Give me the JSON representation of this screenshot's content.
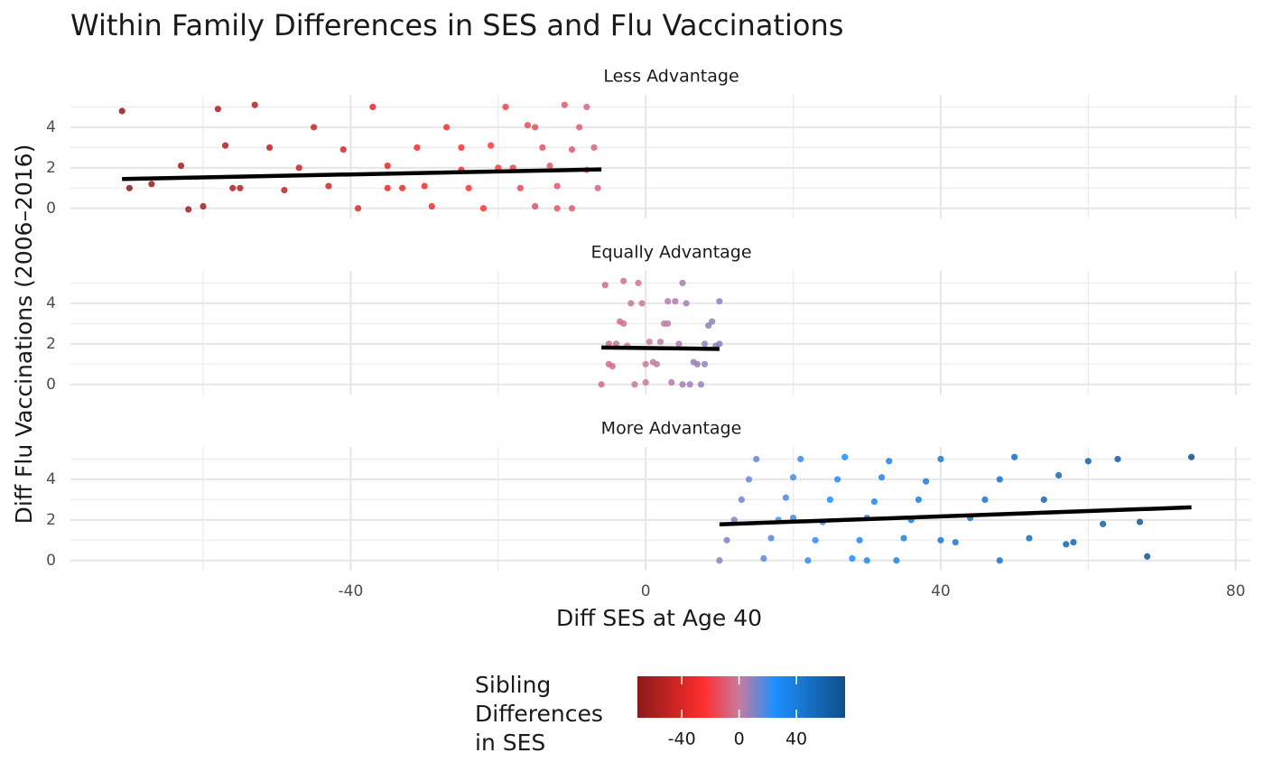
{
  "chart_data": {
    "type": "scatter",
    "title": "Within Family Differences in SES and Flu Vaccinations",
    "xlabel": "Diff SES at Age 40",
    "ylabel": "Diff Flu Vaccinations (2006–2016)",
    "xlim": [
      -78,
      82
    ],
    "xticks": [
      -40,
      0,
      40,
      80
    ],
    "ylim": [
      -0.5,
      5.6
    ],
    "yticks": [
      0,
      2,
      4
    ],
    "grid": true,
    "fit_color": "#000000",
    "panels": [
      {
        "title": "Less Advantage",
        "x": [
          -71,
          -70,
          -67,
          -63,
          -62,
          -60,
          -58,
          -57,
          -56,
          -55,
          -53,
          -51,
          -49,
          -47,
          -45,
          -43,
          -41,
          -39,
          -37,
          -35,
          -33,
          -31,
          -29,
          -27,
          -25,
          -24,
          -22,
          -21,
          -19,
          -18,
          -17,
          -16,
          -15,
          -14,
          -13,
          -12,
          -11,
          -10,
          -9,
          -8,
          -7,
          -6.5,
          -30,
          -20,
          -12,
          -8,
          -15,
          -25,
          -35,
          -10
        ],
        "y": [
          4.8,
          1.0,
          1.2,
          2.1,
          -0.05,
          0.1,
          4.9,
          3.1,
          1.0,
          1.0,
          5.1,
          3.0,
          0.9,
          2.0,
          4.0,
          1.1,
          2.9,
          0.0,
          5.0,
          2.1,
          1.0,
          3.0,
          0.1,
          4.0,
          1.9,
          1.0,
          0.0,
          3.1,
          5.0,
          2.0,
          1.0,
          4.1,
          0.1,
          3.0,
          2.1,
          1.1,
          5.1,
          0.0,
          4.0,
          1.9,
          3.0,
          1.0,
          1.1,
          2.0,
          0.0,
          5.0,
          4.0,
          3.0,
          1.0,
          2.9
        ],
        "fit": {
          "x": [
            -71,
            -6
          ],
          "y": [
            1.45,
            1.92
          ]
        }
      },
      {
        "title": "Equally Advantage",
        "x": [
          -6,
          -5,
          -4,
          -3,
          -2,
          -1,
          0,
          1,
          2,
          3,
          4,
          5,
          6,
          7,
          8,
          9,
          10,
          -5.5,
          -4.5,
          -3.5,
          -2.5,
          -1.5,
          -0.5,
          0.5,
          1.5,
          2.5,
          3.5,
          4.5,
          5.5,
          6.5,
          7.5,
          8.5,
          9.5,
          -5,
          0,
          5,
          10,
          -3,
          3,
          8
        ],
        "y": [
          0.0,
          1.0,
          2.0,
          3.0,
          4.0,
          5.0,
          0.1,
          1.1,
          2.1,
          3.0,
          4.1,
          5.0,
          0.0,
          1.0,
          2.0,
          3.1,
          4.1,
          4.9,
          0.9,
          3.1,
          1.9,
          0.0,
          4.0,
          2.1,
          1.0,
          3.0,
          0.1,
          2.0,
          4.0,
          1.1,
          0.0,
          2.9,
          1.9,
          2.0,
          1.0,
          0.0,
          2.0,
          5.1,
          4.1,
          1.0
        ],
        "fit": {
          "x": [
            -6,
            10
          ],
          "y": [
            1.82,
            1.75
          ]
        }
      },
      {
        "title": "More Advantage",
        "x": [
          10,
          11,
          12,
          13,
          14,
          15,
          16,
          17,
          18,
          19,
          20,
          21,
          22,
          23,
          24,
          25,
          26,
          27,
          28,
          29,
          30,
          31,
          32,
          33,
          34,
          35,
          36,
          37,
          38,
          40,
          42,
          44,
          46,
          48,
          50,
          52,
          54,
          56,
          58,
          60,
          62,
          64,
          67,
          68,
          74,
          57,
          48,
          40,
          30,
          20
        ],
        "y": [
          0.0,
          1.0,
          2.0,
          3.0,
          4.0,
          5.0,
          0.1,
          1.1,
          2.0,
          3.1,
          4.1,
          5.0,
          0.0,
          1.0,
          1.9,
          3.0,
          4.0,
          5.1,
          0.1,
          1.0,
          2.1,
          2.9,
          4.1,
          4.9,
          0.0,
          1.1,
          2.0,
          3.0,
          3.9,
          5.0,
          0.9,
          2.1,
          3.0,
          0.0,
          5.1,
          1.1,
          3.0,
          4.2,
          0.9,
          4.9,
          1.8,
          5.0,
          1.9,
          0.2,
          5.1,
          0.8,
          4.0,
          1.0,
          0.0,
          2.1
        ],
        "fit": {
          "x": [
            10,
            74
          ],
          "y": [
            1.78,
            2.62
          ]
        }
      }
    ],
    "legend": {
      "title": [
        "Sibling",
        "Differences",
        "in SES"
      ],
      "range": [
        -71,
        74
      ],
      "ticks": [
        -40,
        0,
        40
      ],
      "gradient": [
        {
          "value": -71,
          "color": "#8b1a1a"
        },
        {
          "value": -25,
          "color": "#ff2d2d"
        },
        {
          "value": 0,
          "color": "#c87a9e"
        },
        {
          "value": 25,
          "color": "#1e8fff"
        },
        {
          "value": 74,
          "color": "#0f4f8a"
        }
      ]
    }
  }
}
